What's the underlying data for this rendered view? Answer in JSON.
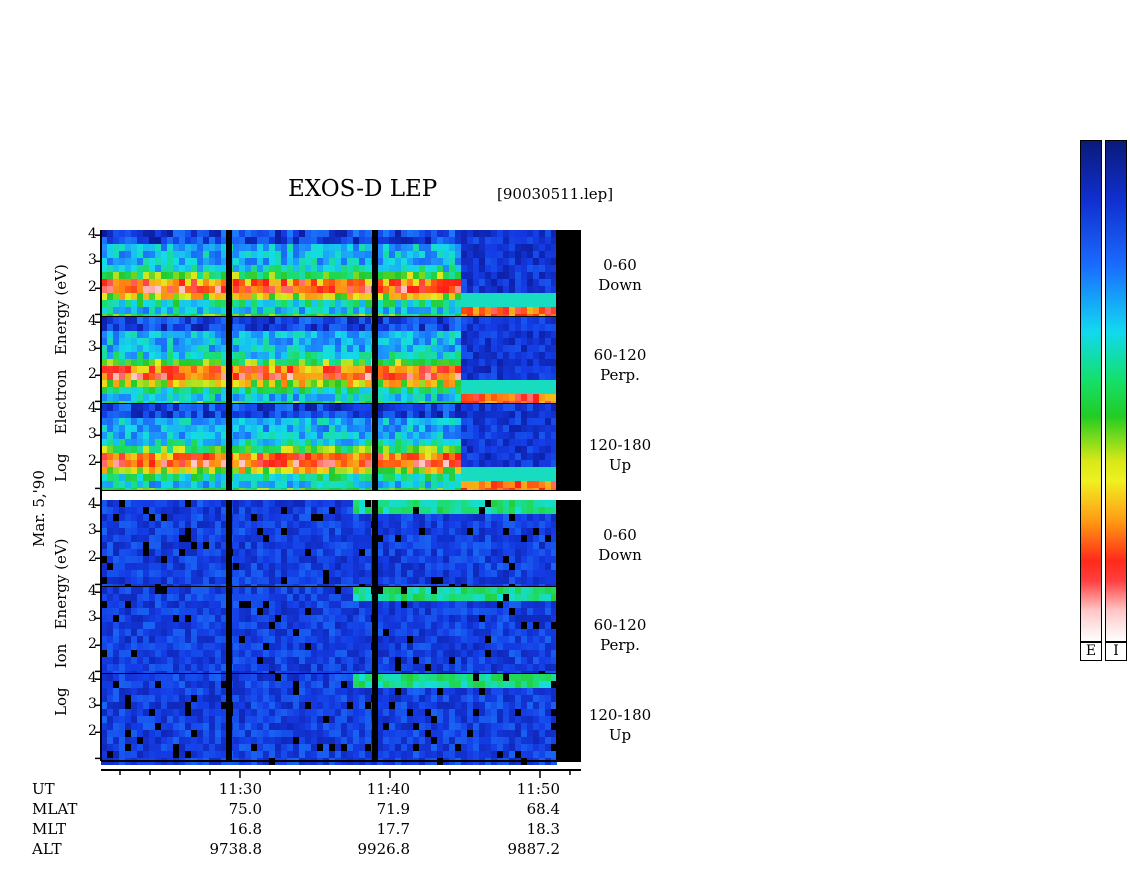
{
  "header": {
    "title": "EXOS-D LEP",
    "filename": "[90030511.lep]"
  },
  "date_label": "Mar. 5,'90",
  "electron_block": {
    "ylabel_words": [
      "Log",
      "Electron",
      "Energy",
      "(eV)"
    ],
    "panels": [
      {
        "angle": "0-60",
        "dir": "Down"
      },
      {
        "angle": "60-120",
        "dir": "Perp."
      },
      {
        "angle": "120-180",
        "dir": "Up"
      }
    ]
  },
  "ion_block": {
    "ylabel_words": [
      "Log",
      "Ion",
      "Energy",
      "(eV)"
    ],
    "panels": [
      {
        "angle": "0-60",
        "dir": "Down"
      },
      {
        "angle": "60-120",
        "dir": "Perp."
      },
      {
        "angle": "120-180",
        "dir": "Up"
      }
    ]
  },
  "y_ticks": [
    "4",
    "3",
    "2"
  ],
  "x_ticks": [
    "11:30",
    "11:40",
    "11:50"
  ],
  "info_rows": [
    {
      "label": "UT",
      "values": [
        "11:30",
        "11:40",
        "11:50"
      ]
    },
    {
      "label": "MLAT",
      "values": [
        "75.0",
        "71.9",
        "68.4"
      ]
    },
    {
      "label": "MLT",
      "values": [
        "16.8",
        "17.7",
        "18.3"
      ]
    },
    {
      "label": "ALT",
      "values": [
        "9738.8",
        "9926.8",
        "9887.2"
      ]
    }
  ],
  "colorbars": [
    {
      "label": "E"
    },
    {
      "label": "I"
    }
  ],
  "colors": {
    "low": "#0b1f8f",
    "mid_blue": "#1e5bff",
    "cyan": "#10e8e8",
    "green": "#22d22a",
    "yellow": "#f2f21a",
    "orange": "#ff8a1a",
    "red": "#ff1a1a",
    "pink": "#ffd6d6",
    "gap": "#000000"
  },
  "chart_data": {
    "type": "heatmap",
    "title": "EXOS-D LEP",
    "xlabel": "UT",
    "x_ticks": [
      "11:30",
      "11:40",
      "11:50"
    ],
    "ylim": [
      1,
      4.2
    ],
    "y_ticks": [
      2,
      3,
      4
    ],
    "y_scale": "log energy (eV)",
    "panels": [
      "0-60 Down",
      "60-120 Perp.",
      "120-180 Up"
    ],
    "colorbar_labels": [
      "E",
      "I"
    ]
  }
}
